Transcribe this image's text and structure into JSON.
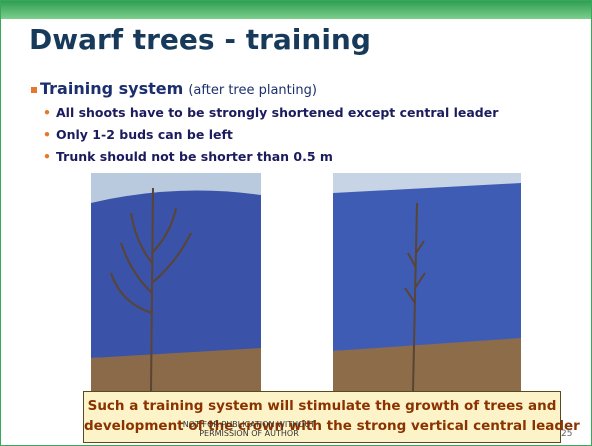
{
  "slide": {
    "title": "Dwarf trees - training",
    "heading": {
      "bold": "Training system",
      "rest": "(after tree planting)"
    },
    "bullets": [
      "All shoots have to be strongly shortened except central leader",
      "Only 1-2 buds can be left",
      "Trunk should not be shorter than 0.5 m"
    ],
    "callout": [
      "Such a training system will stimulate the growth of trees and",
      "development of the crown with the strong vertical central leader"
    ],
    "footer": [
      "NOT FOR PUBLICATION WITHOUT",
      "PERMISSION OF AUTHOR"
    ],
    "page_number": "25"
  }
}
